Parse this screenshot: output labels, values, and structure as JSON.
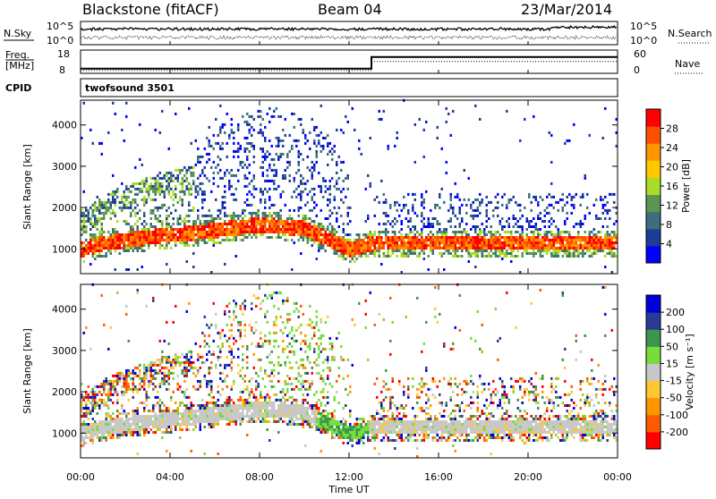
{
  "header": {
    "station": "Blackstone (fitACF)",
    "beam": "Beam 04",
    "date": "23/Mar/2014"
  },
  "params": {
    "nsky_label": "N.Sky",
    "nsearch_label": "N.Search",
    "freq_label_1": "Freq.",
    "freq_label_2": "[MHz]",
    "nave_label": "Nave",
    "cpid_label": "CPID",
    "cpid_value": "twofsound 3501",
    "noise_ticks": [
      "10^5",
      "10^0"
    ],
    "freq_ticks": [
      "18",
      "8"
    ],
    "nave_ticks": [
      "60",
      "0"
    ],
    "freq_change_hour": 13.0,
    "freq_low_mhz": 10,
    "freq_high_mhz": 15
  },
  "colors": {
    "power": [
      "#0000ff",
      "#1e3c96",
      "#3c6e7d",
      "#5a9650",
      "#aadc28",
      "#ffc800",
      "#ff9600",
      "#ff5000",
      "#ff0000"
    ],
    "velocity": [
      "#ff0000",
      "#ff5a00",
      "#ff9600",
      "#ffc832",
      "#c8c8c8",
      "#78dc3c",
      "#3c9650",
      "#283c96",
      "#0000dc"
    ]
  },
  "chart_data": [
    {
      "type": "heatmap",
      "name": "power",
      "x_axis": {
        "label": "Time UT",
        "range_hours": [
          0,
          24
        ],
        "ticks": [
          "00:00",
          "04:00",
          "08:00",
          "12:00",
          "16:00",
          "20:00",
          "00:00"
        ]
      },
      "y_axis": {
        "label": "Slant Range [km]",
        "range_km": [
          400,
          4600
        ],
        "ticks": [
          "1000",
          "2000",
          "3000",
          "4000"
        ]
      },
      "colorbar": {
        "label": "Power [dB]",
        "ticks": [
          "4",
          "8",
          "12",
          "16",
          "20",
          "24",
          "28"
        ],
        "range": [
          0,
          32
        ]
      },
      "main_echo_band_km": [
        [
          0,
          950
        ],
        [
          1,
          1100
        ],
        [
          3,
          1250
        ],
        [
          5,
          1350
        ],
        [
          8,
          1550
        ],
        [
          10,
          1450
        ],
        [
          12,
          950
        ],
        [
          13,
          1100
        ],
        [
          24,
          1100
        ]
      ],
      "secondary_echo_band_km": [
        [
          0,
          1600
        ],
        [
          1.5,
          2100
        ],
        [
          3,
          2400
        ],
        [
          5,
          2700
        ],
        [
          7,
          3600
        ],
        [
          9,
          3700
        ],
        [
          11,
          3100
        ],
        [
          12,
          2000
        ]
      ]
    },
    {
      "type": "heatmap",
      "name": "velocity",
      "x_axis": {
        "label": "Time UT",
        "range_hours": [
          0,
          24
        ],
        "ticks": [
          "00:00",
          "04:00",
          "08:00",
          "12:00",
          "16:00",
          "20:00",
          "00:00"
        ]
      },
      "y_axis": {
        "label": "Slant Range [km]",
        "range_km": [
          400,
          4600
        ],
        "ticks": [
          "1000",
          "2000",
          "3000",
          "4000"
        ]
      },
      "colorbar": {
        "label": "Velocity [m s⁻¹]",
        "ticks": [
          "200",
          "100",
          "50",
          "15",
          "-15",
          "-50",
          "-100",
          "-200"
        ],
        "range": [
          -250,
          250
        ]
      }
    }
  ]
}
